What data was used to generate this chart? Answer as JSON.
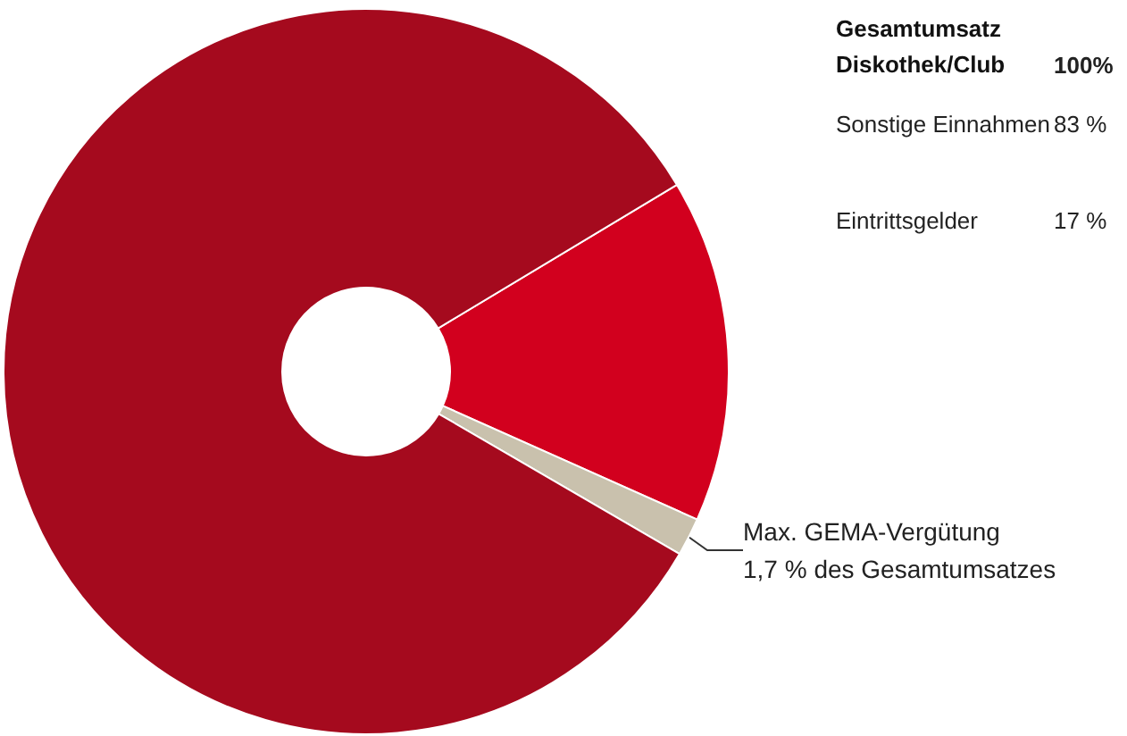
{
  "chart_data": {
    "type": "donut",
    "title": "Gesamtumsatz Diskothek/Club",
    "categories": [
      null,
      null,
      null
    ],
    "values": [
      15.3,
      1.7,
      83
    ],
    "colors": [
      "#d2001e",
      "#c9c1ad",
      "#a50a1e"
    ],
    "value_labels": [
      null,
      "Max. GEMA-Vergütung\n1,7 % des Gesamtumsatzes",
      null
    ],
    "annotations": [
      "100%",
      "Sonstige Einnahmen",
      "83 %",
      "Eintrittsgelder",
      "17 %"
    ]
  }
}
